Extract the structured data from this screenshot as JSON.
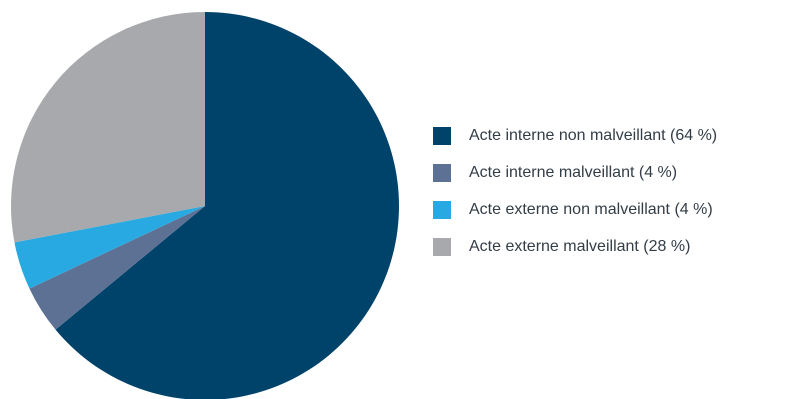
{
  "chart_data": {
    "type": "pie",
    "title": "",
    "slices": [
      {
        "label": "Acte interne non malveillant (64 %)",
        "value": 64,
        "color": "#00436a"
      },
      {
        "label": "Acte interne malveillant (4 %)",
        "value": 4,
        "color": "#5d7194"
      },
      {
        "label": "Acte externe non malveillant (4 %)",
        "value": 4,
        "color": "#28a9e1"
      },
      {
        "label": "Acte externe malveillant (28 %)",
        "value": 28,
        "color": "#a7a9ac"
      }
    ],
    "start_angle": "12 o'clock",
    "direction": "clockwise",
    "legend_position": "right"
  }
}
